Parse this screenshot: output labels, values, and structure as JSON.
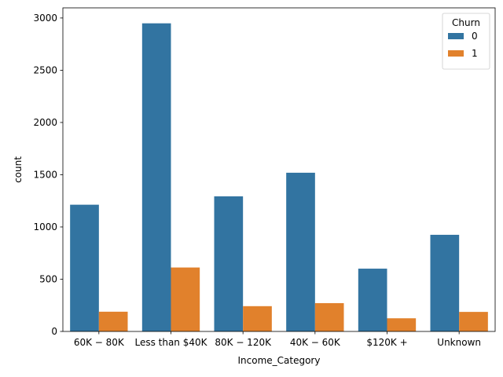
{
  "chart_data": {
    "type": "bar",
    "xlabel": "Income_Category",
    "ylabel": "count",
    "categories": [
      "$60K − $80K",
      "Less than $40K",
      "$80K − $120K",
      "$40K − $60K",
      "$120K +",
      "Unknown"
    ],
    "tick_texts": [
      "60K − 80K",
      "Less than $40K",
      "80K − 120K",
      "40K − 60K",
      "$120K +",
      "Unknown"
    ],
    "series": [
      {
        "name": "0",
        "values": [
          1213,
          2949,
          1293,
          1519,
          601,
          925
        ],
        "color": "#3274a1"
      },
      {
        "name": "1",
        "values": [
          189,
          612,
          242,
          271,
          126,
          187
        ],
        "color": "#e1812c"
      }
    ],
    "ylim": [
      0,
      3097
    ],
    "yticks": [
      0,
      500,
      1000,
      1500,
      2000,
      2500,
      3000
    ],
    "legend": {
      "title": "Churn",
      "position": "top-right"
    },
    "grid": false
  }
}
